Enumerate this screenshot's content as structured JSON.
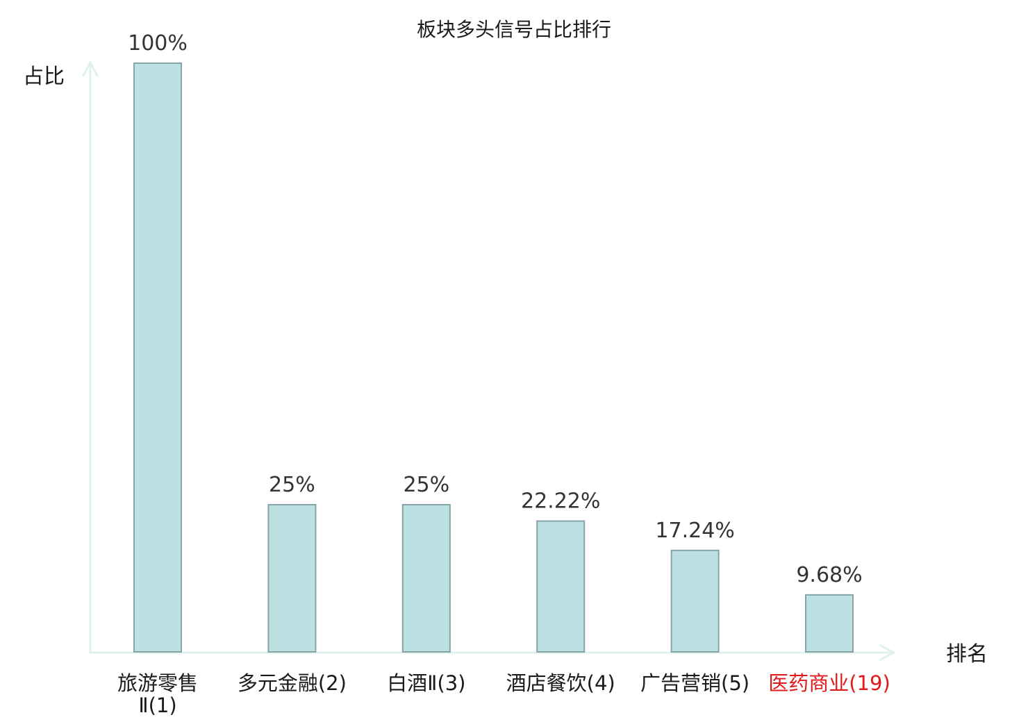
{
  "chart_data": {
    "type": "bar",
    "title": "板块多头信号占比排行",
    "xlabel": "排名",
    "ylabel": "占比",
    "ylim": [
      0,
      100
    ],
    "grid": false,
    "legend": "none",
    "categories": [
      [
        "旅游零售",
        "Ⅱ(1)"
      ],
      [
        "多元金融(2)"
      ],
      [
        "白酒Ⅱ(3)"
      ],
      [
        "酒店餐饮(4)"
      ],
      [
        "广告营销(5)"
      ],
      [
        "医药商业(19)"
      ]
    ],
    "values": [
      100,
      25,
      25,
      22.22,
      17.24,
      9.68
    ],
    "value_labels": [
      "100%",
      "25%",
      "25%",
      "22.22%",
      "17.24%",
      "9.68%"
    ],
    "highlight_index": 5,
    "colors": {
      "bar_fill": "#bde0e2",
      "bar_stroke": "#86a4a7",
      "axis": "#dff1ee",
      "highlight_text": "#e01a1a"
    }
  }
}
